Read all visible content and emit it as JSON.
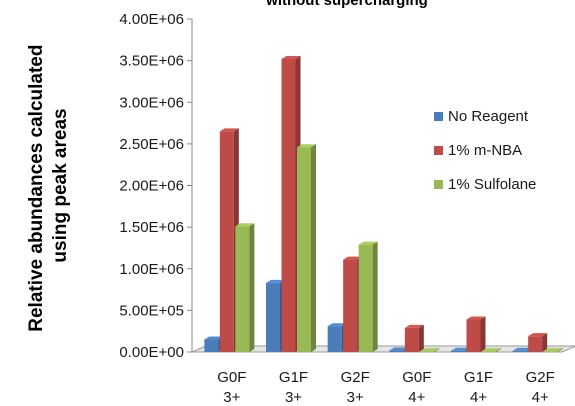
{
  "chart_data": {
    "type": "bar",
    "title": "without supercharging",
    "ylabel": [
      "Relative abundances calculated",
      "using peak areas"
    ],
    "ylim": [
      0,
      4000000
    ],
    "yticks": [
      {
        "value": 0,
        "label": "0.00E+00"
      },
      {
        "value": 500000,
        "label": "5.00E+05"
      },
      {
        "value": 1000000,
        "label": "1.00E+06"
      },
      {
        "value": 1500000,
        "label": "1.50E+06"
      },
      {
        "value": 2000000,
        "label": "2.00E+06"
      },
      {
        "value": 2500000,
        "label": "2.50E+06"
      },
      {
        "value": 3000000,
        "label": "3.00E+06"
      },
      {
        "value": 3500000,
        "label": "3.50E+06"
      },
      {
        "value": 4000000,
        "label": "4.00E+06"
      }
    ],
    "categories": [
      {
        "line1": "G0F",
        "line2": "3+"
      },
      {
        "line1": "G1F",
        "line2": "3+"
      },
      {
        "line1": "G2F",
        "line2": "3+"
      },
      {
        "line1": "G0F",
        "line2": "4+"
      },
      {
        "line1": "G1F",
        "line2": "4+"
      },
      {
        "line1": "G2F",
        "line2": "4+"
      }
    ],
    "series": [
      {
        "name": "No Reagent",
        "color": "#4a7ebb",
        "values": [
          150000,
          830000,
          310000,
          20000,
          15000,
          15000
        ]
      },
      {
        "name": "1% m-NBA",
        "color": "#be4b48",
        "values": [
          2650000,
          3520000,
          1110000,
          290000,
          390000,
          190000
        ]
      },
      {
        "name": "1% Sulfolane",
        "color": "#98b954",
        "values": [
          1510000,
          2460000,
          1290000,
          10000,
          10000,
          10000
        ]
      }
    ],
    "legend_position": "right",
    "grid": false
  }
}
